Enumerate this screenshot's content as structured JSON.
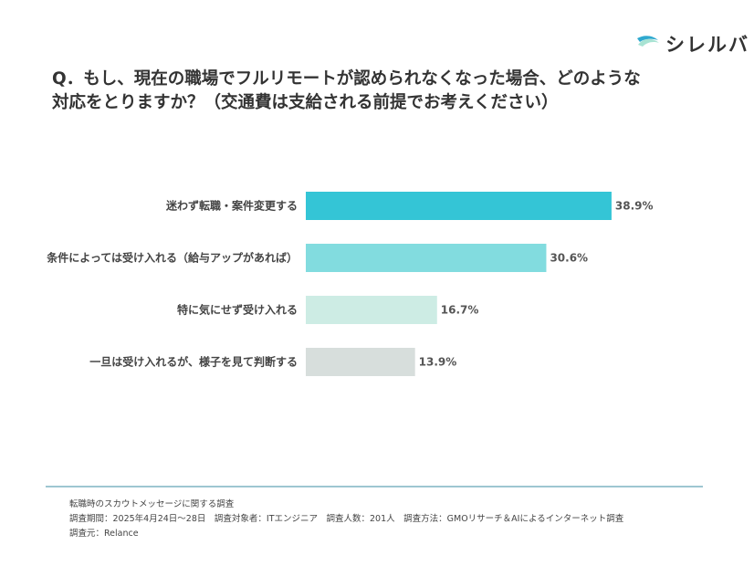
{
  "brand": {
    "name": "シレルバ",
    "icon": "wave-logo-icon"
  },
  "question": "Q．もし、現在の職場でフルリモートが認められなくなった場合、どのような対応をとりますか？（交通費は支給される前提でお考えください）",
  "chart_data": {
    "type": "bar",
    "orientation": "horizontal",
    "title": "Q．もし、現在の職場でフルリモートが認められなくなった場合、どのような対応をとりますか？（交通費は支給される前提でお考えください）",
    "xlabel": "",
    "ylabel": "",
    "grid": false,
    "unit": "%",
    "categories": [
      "迷わず転職・案件変更する",
      "条件によっては受け入れる（給与アップがあれば）",
      "特に気にせず受け入れる",
      "一旦は受け入れるが、様子を見て判断する"
    ],
    "values": [
      38.9,
      30.6,
      16.7,
      13.9
    ],
    "value_labels": [
      "38.9%",
      "30.6%",
      "16.7%",
      "13.9%"
    ],
    "colors": [
      "#34c5d6",
      "#82dcdf",
      "#cdece4",
      "#d7dedc"
    ]
  },
  "footer": {
    "line1": "転職時のスカウトメッセージに関する調査",
    "line2": "調査期間：2025年4月24日〜28日　調査対象者：ITエンジニア　調査人数：201人　調査方法：GMOリサーチ＆AIによるインターネット調査",
    "line3": "調査元：Relance"
  },
  "colors": {
    "divider": "#9ec6d1",
    "text": "#3a3a3a"
  }
}
